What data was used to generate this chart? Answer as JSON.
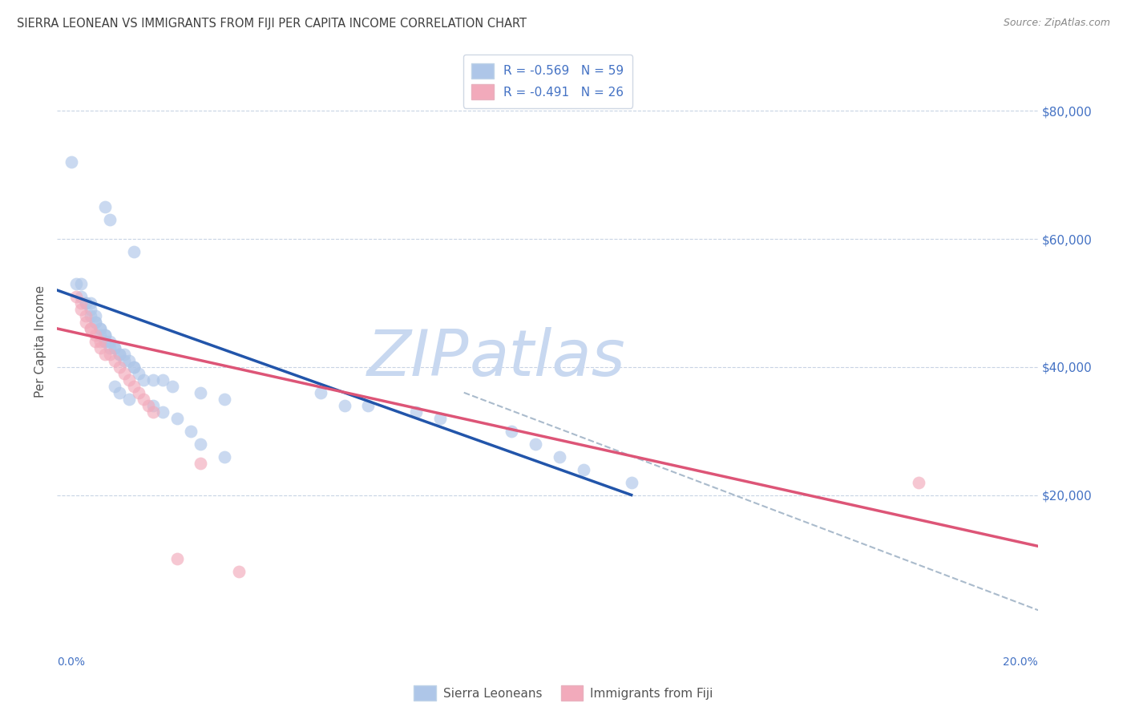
{
  "title": "SIERRA LEONEAN VS IMMIGRANTS FROM FIJI PER CAPITA INCOME CORRELATION CHART",
  "source": "Source: ZipAtlas.com",
  "ylabel": "Per Capita Income",
  "legend_label1": "Sierra Leoneans",
  "legend_label2": "Immigrants from Fiji",
  "R1": "-0.569",
  "N1": "59",
  "R2": "-0.491",
  "N2": "26",
  "blue_color": "#aec6e8",
  "pink_color": "#f2aabb",
  "blue_line_color": "#2255aa",
  "pink_line_color": "#dd5577",
  "dashed_line_color": "#aabbcc",
  "watermark_zip_color": "#c8d8f0",
  "watermark_atlas_color": "#c8d8f0",
  "title_color": "#404040",
  "axis_color": "#4472c4",
  "source_color": "#888888",
  "ylim": [
    0,
    88000
  ],
  "xlim": [
    0.0,
    0.205
  ],
  "blue_scatter_x": [
    0.003,
    0.01,
    0.011,
    0.016,
    0.004,
    0.005,
    0.005,
    0.006,
    0.006,
    0.007,
    0.007,
    0.007,
    0.008,
    0.008,
    0.008,
    0.009,
    0.009,
    0.009,
    0.01,
    0.01,
    0.01,
    0.01,
    0.011,
    0.011,
    0.012,
    0.012,
    0.013,
    0.013,
    0.014,
    0.014,
    0.015,
    0.016,
    0.016,
    0.017,
    0.018,
    0.02,
    0.022,
    0.024,
    0.03,
    0.035,
    0.055,
    0.06,
    0.065,
    0.075,
    0.08,
    0.095,
    0.1,
    0.105,
    0.11,
    0.12,
    0.012,
    0.013,
    0.015,
    0.02,
    0.022,
    0.025,
    0.028,
    0.03,
    0.035
  ],
  "blue_scatter_y": [
    72000,
    65000,
    63000,
    58000,
    53000,
    53000,
    51000,
    50000,
    50000,
    50000,
    49000,
    48000,
    48000,
    47000,
    47000,
    46000,
    46000,
    45000,
    45000,
    45000,
    44000,
    44000,
    44000,
    43000,
    43000,
    43000,
    42000,
    42000,
    42000,
    41000,
    41000,
    40000,
    40000,
    39000,
    38000,
    38000,
    38000,
    37000,
    36000,
    35000,
    36000,
    34000,
    34000,
    33000,
    32000,
    30000,
    28000,
    26000,
    24000,
    22000,
    37000,
    36000,
    35000,
    34000,
    33000,
    32000,
    30000,
    28000,
    26000
  ],
  "pink_scatter_x": [
    0.004,
    0.005,
    0.005,
    0.006,
    0.006,
    0.007,
    0.007,
    0.008,
    0.008,
    0.009,
    0.009,
    0.01,
    0.011,
    0.012,
    0.013,
    0.014,
    0.015,
    0.016,
    0.017,
    0.018,
    0.019,
    0.02,
    0.025,
    0.03,
    0.038,
    0.18
  ],
  "pink_scatter_y": [
    51000,
    50000,
    49000,
    48000,
    47000,
    46000,
    46000,
    45000,
    44000,
    44000,
    43000,
    42000,
    42000,
    41000,
    40000,
    39000,
    38000,
    37000,
    36000,
    35000,
    34000,
    33000,
    10000,
    25000,
    8000,
    22000
  ],
  "blue_trendline_x": [
    0.0,
    0.12
  ],
  "blue_trendline_y": [
    52000,
    20000
  ],
  "pink_trendline_x": [
    0.0,
    0.205
  ],
  "pink_trendline_y": [
    46000,
    12000
  ],
  "dashed_trendline_x": [
    0.085,
    0.205
  ],
  "dashed_trendline_y": [
    36000,
    2000
  ]
}
